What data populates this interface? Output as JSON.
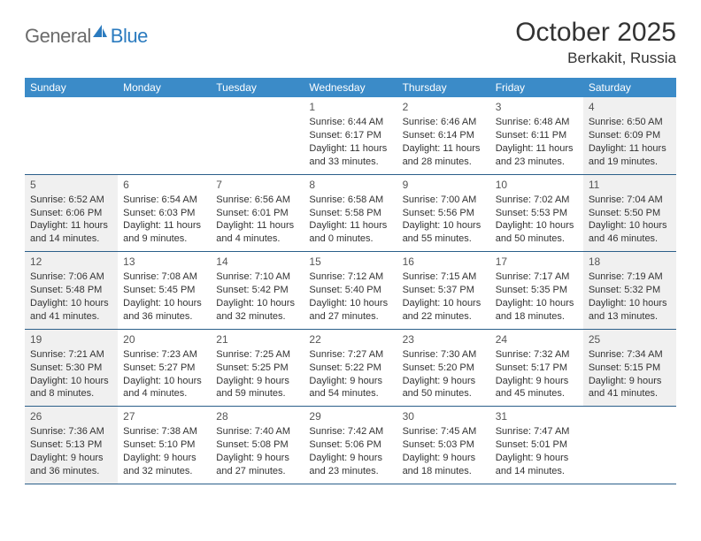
{
  "logo": {
    "general": "General",
    "blue": "Blue"
  },
  "title": "October 2025",
  "location": "Berkakit, Russia",
  "colors": {
    "header_bg": "#3b8bc8",
    "header_text": "#ffffff",
    "border": "#2b5f8a",
    "shaded_bg": "#f0f0f0",
    "text": "#333333",
    "logo_gray": "#6b6b6b",
    "logo_blue": "#2b7bbf"
  },
  "weekdays": [
    "Sunday",
    "Monday",
    "Tuesday",
    "Wednesday",
    "Thursday",
    "Friday",
    "Saturday"
  ],
  "weeks": [
    [
      {
        "n": "",
        "sr": "",
        "ss": "",
        "dl": ""
      },
      {
        "n": "",
        "sr": "",
        "ss": "",
        "dl": ""
      },
      {
        "n": "",
        "sr": "",
        "ss": "",
        "dl": ""
      },
      {
        "n": "1",
        "sr": "Sunrise: 6:44 AM",
        "ss": "Sunset: 6:17 PM",
        "dl": "Daylight: 11 hours and 33 minutes."
      },
      {
        "n": "2",
        "sr": "Sunrise: 6:46 AM",
        "ss": "Sunset: 6:14 PM",
        "dl": "Daylight: 11 hours and 28 minutes."
      },
      {
        "n": "3",
        "sr": "Sunrise: 6:48 AM",
        "ss": "Sunset: 6:11 PM",
        "dl": "Daylight: 11 hours and 23 minutes."
      },
      {
        "n": "4",
        "sr": "Sunrise: 6:50 AM",
        "ss": "Sunset: 6:09 PM",
        "dl": "Daylight: 11 hours and 19 minutes.",
        "shaded": true
      }
    ],
    [
      {
        "n": "5",
        "sr": "Sunrise: 6:52 AM",
        "ss": "Sunset: 6:06 PM",
        "dl": "Daylight: 11 hours and 14 minutes.",
        "shaded": true
      },
      {
        "n": "6",
        "sr": "Sunrise: 6:54 AM",
        "ss": "Sunset: 6:03 PM",
        "dl": "Daylight: 11 hours and 9 minutes."
      },
      {
        "n": "7",
        "sr": "Sunrise: 6:56 AM",
        "ss": "Sunset: 6:01 PM",
        "dl": "Daylight: 11 hours and 4 minutes."
      },
      {
        "n": "8",
        "sr": "Sunrise: 6:58 AM",
        "ss": "Sunset: 5:58 PM",
        "dl": "Daylight: 11 hours and 0 minutes."
      },
      {
        "n": "9",
        "sr": "Sunrise: 7:00 AM",
        "ss": "Sunset: 5:56 PM",
        "dl": "Daylight: 10 hours and 55 minutes."
      },
      {
        "n": "10",
        "sr": "Sunrise: 7:02 AM",
        "ss": "Sunset: 5:53 PM",
        "dl": "Daylight: 10 hours and 50 minutes."
      },
      {
        "n": "11",
        "sr": "Sunrise: 7:04 AM",
        "ss": "Sunset: 5:50 PM",
        "dl": "Daylight: 10 hours and 46 minutes.",
        "shaded": true
      }
    ],
    [
      {
        "n": "12",
        "sr": "Sunrise: 7:06 AM",
        "ss": "Sunset: 5:48 PM",
        "dl": "Daylight: 10 hours and 41 minutes.",
        "shaded": true
      },
      {
        "n": "13",
        "sr": "Sunrise: 7:08 AM",
        "ss": "Sunset: 5:45 PM",
        "dl": "Daylight: 10 hours and 36 minutes."
      },
      {
        "n": "14",
        "sr": "Sunrise: 7:10 AM",
        "ss": "Sunset: 5:42 PM",
        "dl": "Daylight: 10 hours and 32 minutes."
      },
      {
        "n": "15",
        "sr": "Sunrise: 7:12 AM",
        "ss": "Sunset: 5:40 PM",
        "dl": "Daylight: 10 hours and 27 minutes."
      },
      {
        "n": "16",
        "sr": "Sunrise: 7:15 AM",
        "ss": "Sunset: 5:37 PM",
        "dl": "Daylight: 10 hours and 22 minutes."
      },
      {
        "n": "17",
        "sr": "Sunrise: 7:17 AM",
        "ss": "Sunset: 5:35 PM",
        "dl": "Daylight: 10 hours and 18 minutes."
      },
      {
        "n": "18",
        "sr": "Sunrise: 7:19 AM",
        "ss": "Sunset: 5:32 PM",
        "dl": "Daylight: 10 hours and 13 minutes.",
        "shaded": true
      }
    ],
    [
      {
        "n": "19",
        "sr": "Sunrise: 7:21 AM",
        "ss": "Sunset: 5:30 PM",
        "dl": "Daylight: 10 hours and 8 minutes.",
        "shaded": true
      },
      {
        "n": "20",
        "sr": "Sunrise: 7:23 AM",
        "ss": "Sunset: 5:27 PM",
        "dl": "Daylight: 10 hours and 4 minutes."
      },
      {
        "n": "21",
        "sr": "Sunrise: 7:25 AM",
        "ss": "Sunset: 5:25 PM",
        "dl": "Daylight: 9 hours and 59 minutes."
      },
      {
        "n": "22",
        "sr": "Sunrise: 7:27 AM",
        "ss": "Sunset: 5:22 PM",
        "dl": "Daylight: 9 hours and 54 minutes."
      },
      {
        "n": "23",
        "sr": "Sunrise: 7:30 AM",
        "ss": "Sunset: 5:20 PM",
        "dl": "Daylight: 9 hours and 50 minutes."
      },
      {
        "n": "24",
        "sr": "Sunrise: 7:32 AM",
        "ss": "Sunset: 5:17 PM",
        "dl": "Daylight: 9 hours and 45 minutes."
      },
      {
        "n": "25",
        "sr": "Sunrise: 7:34 AM",
        "ss": "Sunset: 5:15 PM",
        "dl": "Daylight: 9 hours and 41 minutes.",
        "shaded": true
      }
    ],
    [
      {
        "n": "26",
        "sr": "Sunrise: 7:36 AM",
        "ss": "Sunset: 5:13 PM",
        "dl": "Daylight: 9 hours and 36 minutes.",
        "shaded": true
      },
      {
        "n": "27",
        "sr": "Sunrise: 7:38 AM",
        "ss": "Sunset: 5:10 PM",
        "dl": "Daylight: 9 hours and 32 minutes."
      },
      {
        "n": "28",
        "sr": "Sunrise: 7:40 AM",
        "ss": "Sunset: 5:08 PM",
        "dl": "Daylight: 9 hours and 27 minutes."
      },
      {
        "n": "29",
        "sr": "Sunrise: 7:42 AM",
        "ss": "Sunset: 5:06 PM",
        "dl": "Daylight: 9 hours and 23 minutes."
      },
      {
        "n": "30",
        "sr": "Sunrise: 7:45 AM",
        "ss": "Sunset: 5:03 PM",
        "dl": "Daylight: 9 hours and 18 minutes."
      },
      {
        "n": "31",
        "sr": "Sunrise: 7:47 AM",
        "ss": "Sunset: 5:01 PM",
        "dl": "Daylight: 9 hours and 14 minutes."
      },
      {
        "n": "",
        "sr": "",
        "ss": "",
        "dl": ""
      }
    ]
  ]
}
